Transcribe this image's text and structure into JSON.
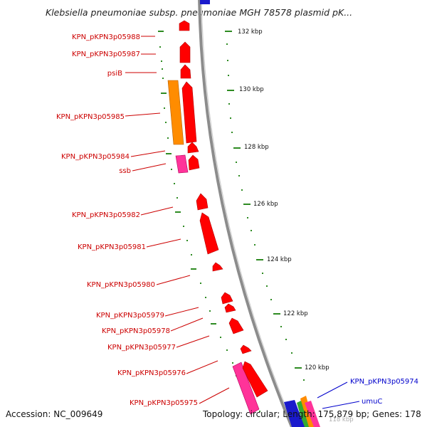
{
  "title": "Klebsiella pneumoniae subsp. pneumoniae MGH 78578 plasmid pK...",
  "footer": {
    "accession": "Accession: NC_009649",
    "summary": "Topology: circular; Length: 175,879 bp; Genes: 178"
  },
  "colors": {
    "forward_cds": "#ff0000",
    "orange_feature": "#ff8c00",
    "pink_feature": "#ff3399",
    "blue_feature": "#0000cc",
    "label_red": "#cc0000",
    "label_blue": "#0000cc",
    "tick_green": "#2e8b22",
    "backbone": "#888888"
  },
  "ticks": [
    {
      "label": "132 kbp"
    },
    {
      "label": "130 kbp"
    },
    {
      "label": "128 kbp"
    },
    {
      "label": "126 kbp"
    },
    {
      "label": "124 kbp"
    },
    {
      "label": "122 kbp"
    },
    {
      "label": "120 kbp"
    },
    {
      "label": "118 kbp"
    }
  ],
  "genes_left": [
    {
      "name": "KPN_pKPN3p05988"
    },
    {
      "name": "KPN_pKPN3p05987"
    },
    {
      "name": "psiB"
    },
    {
      "name": "KPN_pKPN3p05985"
    },
    {
      "name": "KPN_pKPN3p05984"
    },
    {
      "name": "ssb"
    },
    {
      "name": "KPN_pKPN3p05982"
    },
    {
      "name": "KPN_pKPN3p05981"
    },
    {
      "name": "KPN_pKPN3p05980"
    },
    {
      "name": "KPN_pKPN3p05979"
    },
    {
      "name": "KPN_pKPN3p05978"
    },
    {
      "name": "KPN_pKPN3p05977"
    },
    {
      "name": "KPN_pKPN3p05976"
    },
    {
      "name": "KPN_pKPN3p05975"
    }
  ],
  "genes_right": [
    {
      "name": "KPN_pKPN3p05974"
    },
    {
      "name": "umuC"
    }
  ]
}
